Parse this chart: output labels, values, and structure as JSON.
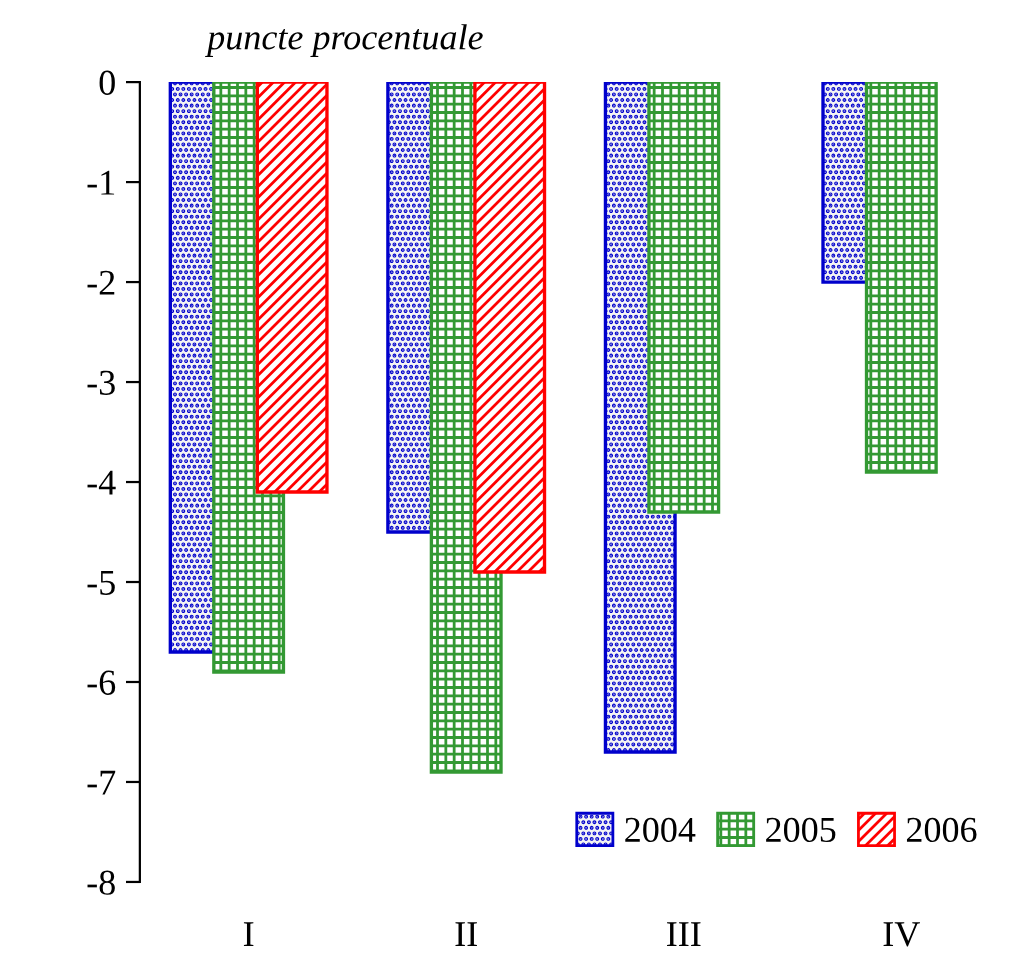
{
  "chart_data": {
    "type": "bar",
    "ylabel": "puncte procentuale",
    "categories": [
      "I",
      "II",
      "III",
      "IV"
    ],
    "series": [
      {
        "name": "2004",
        "color": "#0000cc",
        "values": [
          -5.7,
          -4.5,
          -6.7,
          -2.0
        ]
      },
      {
        "name": "2005",
        "color": "#339933",
        "values": [
          -5.9,
          -6.9,
          -4.3,
          -3.9
        ]
      },
      {
        "name": "2006",
        "color": "#ff0000",
        "values": [
          -4.1,
          -4.9,
          null,
          null
        ]
      }
    ],
    "ylim": [
      -8,
      0
    ],
    "yticks": [
      {
        "value": -8,
        "label": "-8"
      },
      {
        "value": -7,
        "label": "-7"
      },
      {
        "value": -6,
        "label": "-6"
      },
      {
        "value": -5,
        "label": "-5"
      },
      {
        "value": -4,
        "label": "-4"
      },
      {
        "value": -3,
        "label": "-3"
      },
      {
        "value": -2,
        "label": "-2"
      },
      {
        "value": -1,
        "label": "-1"
      },
      0
    ],
    "legend": "bottom right",
    "grid": false
  }
}
